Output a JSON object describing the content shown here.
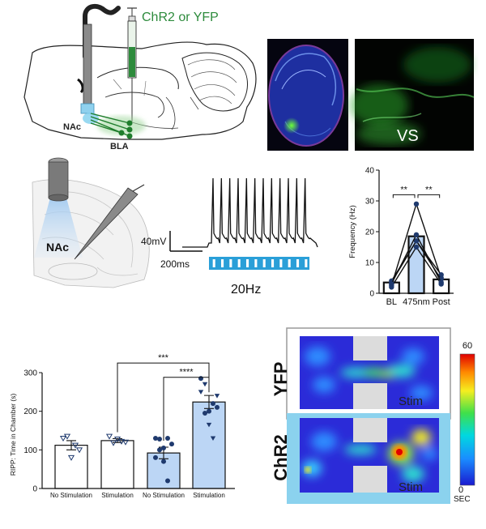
{
  "panel_a": {
    "virus_label": "ChR2 or YFP",
    "nac_label": "NAc",
    "bla_label": "BLA",
    "vs_label": "VS"
  },
  "panel_b": {
    "nac_label": "NAc",
    "voltage_scale": "40mV",
    "time_scale": "200ms",
    "frequency_label": "20Hz",
    "pulse_count": 12
  },
  "chart_data": [
    {
      "type": "bar",
      "ylabel": "Frequency (Hz)",
      "categories": [
        "BL",
        "475nm",
        "Post"
      ],
      "values": [
        3.5,
        18.5,
        4.5
      ],
      "ylim": [
        0,
        40
      ],
      "yticks": [
        0,
        10,
        20,
        30,
        40
      ],
      "bar_colors": [
        "#ffffff",
        "#bcd6f5",
        "#ffffff"
      ],
      "subjects": [
        [
          2.5,
          29,
          5
        ],
        [
          3.5,
          17,
          6
        ],
        [
          2,
          15,
          3
        ],
        [
          4,
          17,
          4.5
        ],
        [
          3,
          19,
          3.5
        ]
      ],
      "significance": [
        {
          "from": "BL",
          "to": "475nm",
          "label": "**"
        },
        {
          "from": "475nm",
          "to": "Post",
          "label": "**"
        }
      ]
    },
    {
      "type": "bar",
      "ylabel": "RIPP: Time in Chamber (s)",
      "categories": [
        "No Stimulation",
        "Stimulation",
        "No Stimulation",
        "Stimulation"
      ],
      "values": [
        112,
        124,
        92,
        224
      ],
      "errors": [
        12,
        5,
        15,
        17
      ],
      "ylim": [
        0,
        300
      ],
      "yticks": [
        0,
        100,
        200,
        300
      ],
      "bar_colors": [
        "#ffffff",
        "#ffffff",
        "#bcd6f5",
        "#bcd6f5"
      ],
      "points": [
        [
          130,
          135,
          80,
          112,
          100
        ],
        [
          135,
          118,
          128,
          122,
          120
        ],
        [
          130,
          100,
          70,
          20,
          115,
          80,
          128,
          105,
          130
        ],
        [
          285,
          270,
          200,
          130,
          210,
          250,
          195,
          165,
          220,
          240
        ]
      ],
      "significance": [
        {
          "from": 1,
          "to": 3,
          "label": "***"
        },
        {
          "from": 2,
          "to": 3,
          "label": "****"
        }
      ]
    }
  ],
  "heatmap": {
    "yfp_label": "YFP",
    "chr2_label": "ChR2",
    "stim_label": "Stim",
    "colorbar_max": "60",
    "colorbar_min": "0",
    "colorbar_unit": "SEC"
  }
}
